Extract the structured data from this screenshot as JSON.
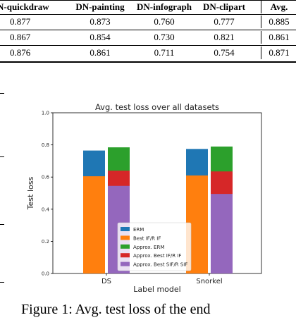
{
  "table": {
    "headers": [
      "N-quickdraw",
      "DN-painting",
      "DN-infograph",
      "DN-clipart",
      "Avg."
    ],
    "rows": [
      [
        "0.877",
        "0.873",
        "0.760",
        "0.777",
        "0.885"
      ],
      [
        "0.867",
        "0.854",
        "0.730",
        "0.821",
        "0.861"
      ],
      [
        "0.876",
        "0.861",
        "0.711",
        "0.754",
        "0.871"
      ]
    ]
  },
  "caption": "Figure 1: Avg. test loss of the end",
  "chart_data": {
    "type": "bar",
    "title": "Avg. test loss over all datasets",
    "xlabel": "Label model",
    "ylabel": "Test loss",
    "ylim": [
      0,
      1.0
    ],
    "yticks": [
      "0.0",
      "0.2",
      "0.4",
      "0.6",
      "0.8",
      "1.0"
    ],
    "ytick_values": [
      0,
      0.2,
      0.4,
      0.6,
      0.8,
      1.0
    ],
    "categories": [
      "DS",
      "Snorkel"
    ],
    "legend_position": "lower-center",
    "grid": false,
    "series": [
      {
        "name": "ERM",
        "color": "#1f77b4",
        "values": [
          0.765,
          0.775
        ]
      },
      {
        "name": "Best IF/R IF",
        "color": "#ff7f0e",
        "values": [
          0.605,
          0.61
        ]
      },
      {
        "name": "Approx. ERM",
        "color": "#2ca02c",
        "values": [
          0.785,
          0.79
        ]
      },
      {
        "name": "Approx. Best IF/R IF",
        "color": "#d62728",
        "values": [
          0.64,
          0.635
        ]
      },
      {
        "name": "Approx. Best SIF/R SIF",
        "color": "#9467bd",
        "values": [
          0.545,
          0.495
        ]
      }
    ],
    "groups": [
      {
        "left": [
          "ERM",
          "Best IF/R IF"
        ],
        "right": [
          "Approx. ERM",
          "Approx. Best IF/R IF",
          "Approx. Best SIF/R SIF"
        ]
      }
    ]
  }
}
